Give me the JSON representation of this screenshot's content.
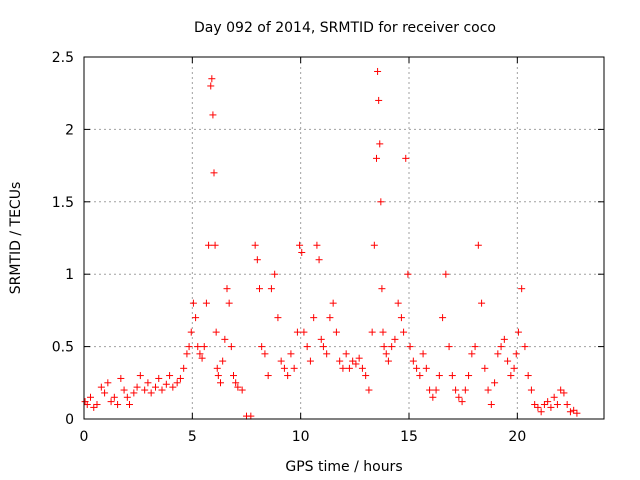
{
  "chart_data": {
    "type": "scatter",
    "title": "Day 092 of 2014, SRMTID for receiver coco",
    "xlabel": "GPS time / hours",
    "ylabel": "SRMTID / TECUs",
    "xlim": [
      0,
      24
    ],
    "ylim": [
      0,
      2.5
    ],
    "xticks": [
      0,
      5,
      10,
      15,
      20
    ],
    "xtick_labels": [
      "0",
      "5",
      "10",
      "15",
      "20"
    ],
    "yticks": [
      0,
      0.5,
      1,
      1.5,
      2,
      2.5
    ],
    "ytick_labels": [
      "0",
      "0.5",
      "1",
      "1.5",
      "2",
      "2.5"
    ],
    "grid": true,
    "marker": "+",
    "color": "#ff0000",
    "series": [
      {
        "name": "SRMTID",
        "x": [
          0.05,
          0.15,
          0.3,
          0.45,
          0.6,
          0.8,
          0.95,
          1.1,
          1.25,
          1.4,
          1.55,
          1.7,
          1.85,
          2.0,
          2.1,
          2.3,
          2.45,
          2.6,
          2.8,
          2.95,
          3.1,
          3.3,
          3.45,
          3.6,
          3.8,
          3.95,
          4.1,
          4.3,
          4.45,
          4.6,
          4.75,
          4.85,
          4.95,
          5.05,
          5.15,
          5.25,
          5.35,
          5.45,
          5.55,
          5.65,
          5.75,
          5.85,
          5.9,
          5.95,
          6.0,
          6.05,
          6.1,
          6.15,
          6.2,
          6.3,
          6.4,
          6.5,
          6.6,
          6.7,
          6.8,
          6.9,
          7.0,
          7.1,
          7.3,
          7.5,
          7.7,
          7.9,
          8.0,
          8.1,
          8.2,
          8.35,
          8.5,
          8.65,
          8.8,
          8.95,
          9.1,
          9.25,
          9.4,
          9.55,
          9.7,
          9.85,
          9.95,
          10.05,
          10.15,
          10.3,
          10.45,
          10.6,
          10.75,
          10.85,
          10.95,
          11.05,
          11.2,
          11.35,
          11.5,
          11.65,
          11.8,
          11.95,
          12.1,
          12.25,
          12.4,
          12.55,
          12.7,
          12.85,
          13.0,
          13.15,
          13.3,
          13.4,
          13.5,
          13.55,
          13.6,
          13.65,
          13.7,
          13.75,
          13.8,
          13.85,
          13.95,
          14.05,
          14.2,
          14.35,
          14.5,
          14.65,
          14.75,
          14.85,
          14.95,
          15.05,
          15.2,
          15.35,
          15.5,
          15.65,
          15.8,
          15.95,
          16.1,
          16.25,
          16.4,
          16.55,
          16.7,
          16.85,
          17.0,
          17.15,
          17.3,
          17.45,
          17.6,
          17.75,
          17.9,
          18.05,
          18.2,
          18.35,
          18.5,
          18.65,
          18.8,
          18.95,
          19.1,
          19.25,
          19.4,
          19.55,
          19.7,
          19.85,
          19.95,
          20.05,
          20.2,
          20.35,
          20.5,
          20.65,
          20.8,
          20.95,
          21.1,
          21.25,
          21.4,
          21.55,
          21.7,
          21.85,
          22.0,
          22.15,
          22.3,
          22.45,
          22.6,
          22.75
        ],
        "y": [
          0.12,
          0.1,
          0.15,
          0.08,
          0.1,
          0.22,
          0.18,
          0.25,
          0.12,
          0.15,
          0.1,
          0.28,
          0.2,
          0.15,
          0.1,
          0.18,
          0.22,
          0.3,
          0.2,
          0.25,
          0.18,
          0.22,
          0.28,
          0.2,
          0.24,
          0.3,
          0.22,
          0.25,
          0.28,
          0.35,
          0.45,
          0.5,
          0.6,
          0.8,
          0.7,
          0.5,
          0.45,
          0.42,
          0.5,
          0.8,
          1.2,
          2.3,
          2.35,
          2.1,
          1.7,
          1.2,
          0.6,
          0.35,
          0.3,
          0.25,
          0.4,
          0.55,
          0.9,
          0.8,
          0.5,
          0.3,
          0.25,
          0.22,
          0.2,
          0.02,
          0.02,
          1.2,
          1.1,
          0.9,
          0.5,
          0.45,
          0.3,
          0.9,
          1.0,
          0.7,
          0.4,
          0.35,
          0.3,
          0.45,
          0.35,
          0.6,
          1.2,
          1.15,
          0.6,
          0.5,
          0.4,
          0.7,
          1.2,
          1.1,
          0.55,
          0.5,
          0.45,
          0.7,
          0.8,
          0.6,
          0.4,
          0.35,
          0.45,
          0.35,
          0.4,
          0.38,
          0.42,
          0.35,
          0.3,
          0.2,
          0.6,
          1.2,
          1.8,
          2.4,
          2.2,
          1.9,
          1.5,
          0.9,
          0.6,
          0.5,
          0.45,
          0.4,
          0.5,
          0.55,
          0.8,
          0.7,
          0.6,
          1.8,
          1.0,
          0.5,
          0.4,
          0.35,
          0.3,
          0.45,
          0.35,
          0.2,
          0.15,
          0.2,
          0.3,
          0.7,
          1.0,
          0.5,
          0.3,
          0.2,
          0.15,
          0.12,
          0.2,
          0.3,
          0.45,
          0.5,
          1.2,
          0.8,
          0.35,
          0.2,
          0.1,
          0.25,
          0.45,
          0.5,
          0.55,
          0.4,
          0.3,
          0.35,
          0.45,
          0.6,
          0.9,
          0.5,
          0.3,
          0.2,
          0.1,
          0.08,
          0.05,
          0.1,
          0.12,
          0.08,
          0.15,
          0.1,
          0.2,
          0.18,
          0.1,
          0.05,
          0.06,
          0.04
        ]
      }
    ]
  }
}
